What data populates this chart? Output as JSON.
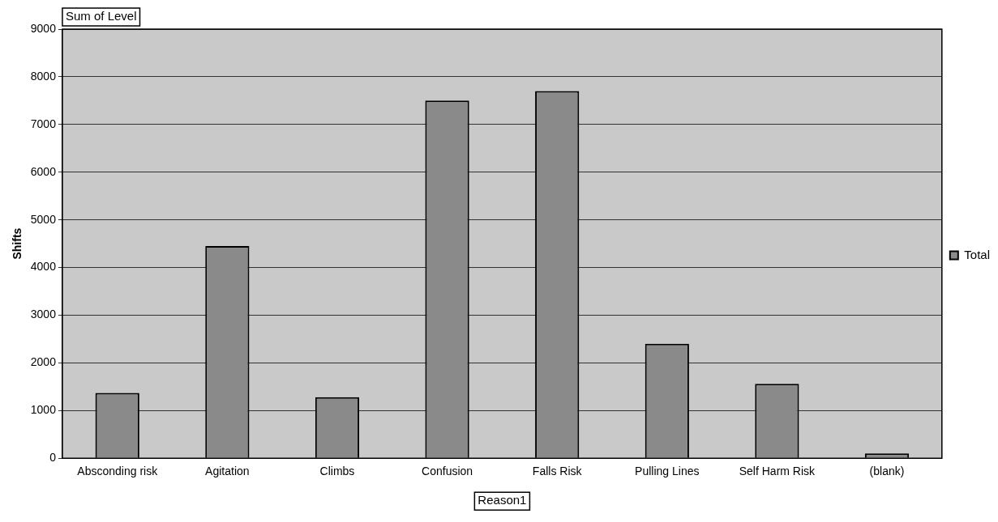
{
  "chart_data": {
    "type": "bar",
    "title": "Sum of Level",
    "xlabel": "Reason1",
    "ylabel": "Shifts",
    "categories": [
      "Absconding risk",
      "Agitation",
      "Climbs",
      "Confusion",
      "Falls Risk",
      "Pulling Lines",
      "Self Harm Risk",
      "(blank)"
    ],
    "series": [
      {
        "name": "Total",
        "color": "#8a8a8a",
        "values": [
          1370,
          4450,
          1280,
          7500,
          7700,
          2400,
          1560,
          100
        ]
      }
    ],
    "ylim": [
      0,
      9000
    ],
    "yticks": [
      0,
      1000,
      2000,
      3000,
      4000,
      5000,
      6000,
      7000,
      8000,
      9000
    ],
    "grid": "y",
    "legend": "right"
  }
}
